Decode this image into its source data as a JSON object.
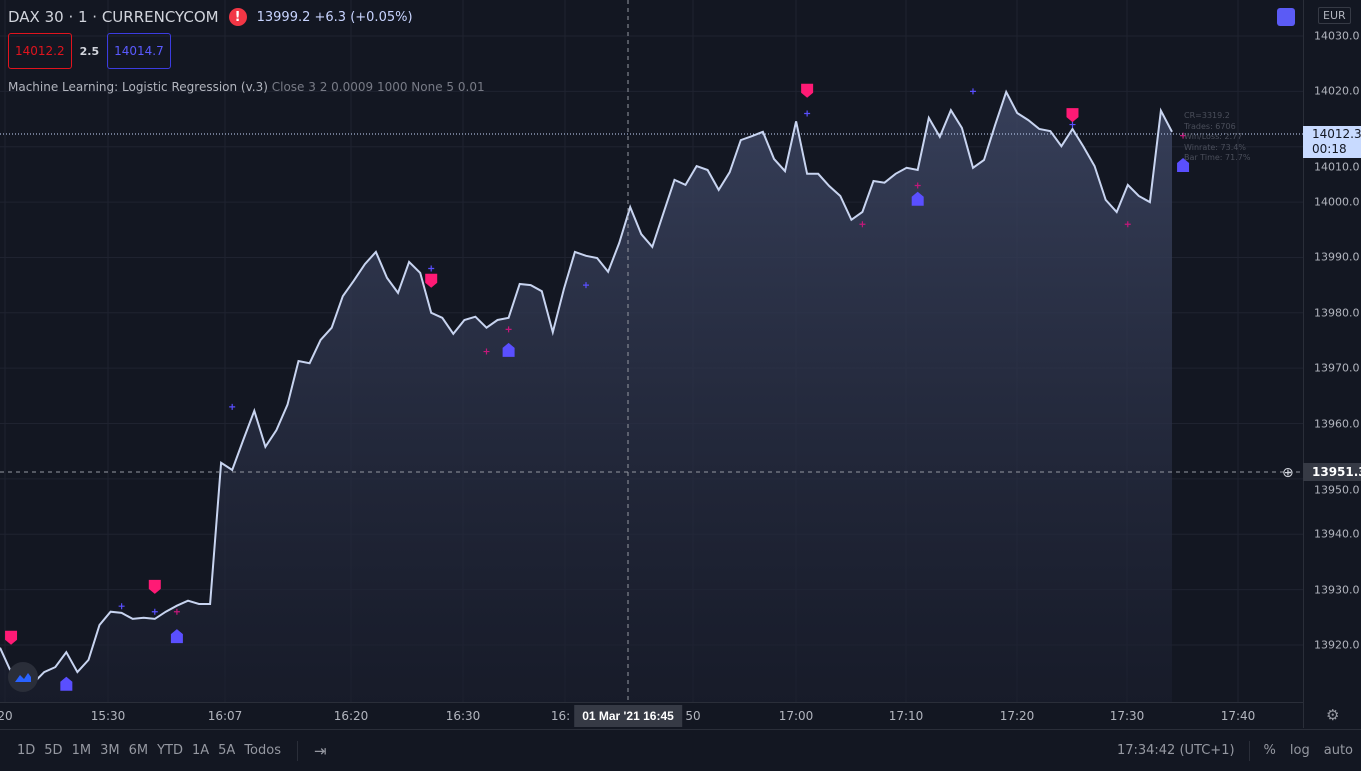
{
  "header": {
    "symbol": "DAX 30 · 1 · CURRENCYCOM",
    "quote": "13999.2  +6.3 (+0.05%)",
    "bid": "14012.2",
    "spread": "2.5",
    "ask": "14014.7",
    "currency": "EUR"
  },
  "indicator": {
    "name": "Machine Learning: Logistic Regression (v.3)",
    "params": "Close 3 2 0.0009 1000 None 5 0.01"
  },
  "stats": [
    "CR=3319.2",
    "Trades: 6706",
    "Win/Loss: 2.77",
    "Winrate: 73.4%",
    "Bar Time: 71.7%"
  ],
  "price_tag": {
    "price": "14012.3",
    "countdown": "00:18"
  },
  "crosshair": {
    "price": "13951.3",
    "time": "01 Mar '21   16:45"
  },
  "bottom": {
    "ranges": [
      "1D",
      "5D",
      "1M",
      "3M",
      "6M",
      "YTD",
      "1A",
      "5A",
      "Todos"
    ],
    "clock": "17:34:42 (UTC+1)",
    "pct": "%",
    "log": "log",
    "auto": "auto"
  },
  "colors": {
    "line": "#c8d4f0",
    "sell": "#ff1a75",
    "buy": "#5a4fff",
    "bg": "#131722"
  },
  "chart_data": {
    "type": "area",
    "ylim": [
      13910,
      14033
    ],
    "yticks": [
      14030,
      14020,
      14010,
      14000,
      13990,
      13980,
      13970,
      13960,
      13950,
      13940,
      13930,
      13920
    ],
    "ytick_labels": [
      "14030.0",
      "14020.0",
      "14010.0",
      "14000.0",
      "13990.0",
      "13980.0",
      "13970.0",
      "13960.0",
      "13950.0",
      "13940.0",
      "13930.0",
      "13920.0"
    ],
    "xtick_labels": [
      "20",
      "15:30",
      "16:07",
      "16:20",
      "16:30",
      "16:",
      "50",
      "17:00",
      "17:10",
      "17:20",
      "17:30",
      "17:40"
    ],
    "close": [
      13919.5,
      13915.1,
      13913.1,
      13913.1,
      13915.1,
      13916.0,
      13918.7,
      13915.1,
      13917.3,
      13923.6,
      13926.0,
      13925.8,
      13924.7,
      13924.9,
      13924.7,
      13926.0,
      13927.1,
      13928.0,
      13927.4,
      13927.4,
      13952.9,
      13951.6,
      13957.0,
      13962.3,
      13955.8,
      13958.8,
      13963.4,
      13971.3,
      13970.9,
      13975.1,
      13977.3,
      13983.0,
      13985.8,
      13988.8,
      13991.0,
      13986.3,
      13983.6,
      13989.2,
      13987.2,
      13980.0,
      13979.1,
      13976.2,
      13978.7,
      13979.3,
      13977.3,
      13978.7,
      13979.1,
      13985.2,
      13985.0,
      13983.9,
      13976.5,
      13984.3,
      13991.0,
      13990.3,
      13989.9,
      13987.4,
      13992.6,
      13999.1,
      13994.2,
      13991.9,
      13998.0,
      14004.0,
      14003.1,
      14006.5,
      14005.8,
      14002.2,
      14005.4,
      14011.2,
      14011.9,
      14012.7,
      14007.8,
      14005.6,
      14014.6,
      14005.1,
      14005.1,
      14002.9,
      14001.1,
      13996.8,
      13998.2,
      14003.8,
      14003.5,
      14005.1,
      14006.2,
      14005.8,
      14015.2,
      14011.8,
      14016.6,
      14013.4,
      14006.2,
      14007.6,
      14013.9,
      14019.9,
      14016.1,
      14014.8,
      14013.2,
      14012.8,
      14010.1,
      14013.2,
      14010.0,
      14006.5,
      14000.4,
      13998.2,
      14003.1,
      14001.1,
      14000.0,
      14016.5,
      14012.7
    ],
    "sell_signals": [
      {
        "i": 1,
        "p": 13921.3
      },
      {
        "i": 14,
        "p": 13930.5
      },
      {
        "i": 39,
        "p": 13985.8
      },
      {
        "i": 73,
        "p": 14020.1
      },
      {
        "i": 97,
        "p": 14015.7
      }
    ],
    "buy_signals": [
      {
        "i": 6,
        "p": 13913.0
      },
      {
        "i": 16,
        "p": 13921.6
      },
      {
        "i": 46,
        "p": 13973.3
      },
      {
        "i": 83,
        "p": 14000.6
      },
      {
        "i": 107,
        "p": 14006.7
      }
    ],
    "crosses": [
      {
        "i": 11,
        "p": 13927,
        "c": "buy"
      },
      {
        "i": 14,
        "p": 13926,
        "c": "buy"
      },
      {
        "i": 16,
        "p": 13926,
        "c": "sell"
      },
      {
        "i": 21,
        "p": 13963,
        "c": "buy"
      },
      {
        "i": 39,
        "p": 13988,
        "c": "buy"
      },
      {
        "i": 44,
        "p": 13973,
        "c": "sell"
      },
      {
        "i": 46,
        "p": 13977,
        "c": "sell"
      },
      {
        "i": 53,
        "p": 13985,
        "c": "buy"
      },
      {
        "i": 73,
        "p": 14016,
        "c": "buy"
      },
      {
        "i": 78,
        "p": 13996,
        "c": "sell"
      },
      {
        "i": 83,
        "p": 14003,
        "c": "sell"
      },
      {
        "i": 88,
        "p": 14020,
        "c": "buy"
      },
      {
        "i": 97,
        "p": 14014,
        "c": "buy"
      },
      {
        "i": 102,
        "p": 13996,
        "c": "sell"
      },
      {
        "i": 107,
        "p": 14012,
        "c": "sell"
      }
    ]
  }
}
